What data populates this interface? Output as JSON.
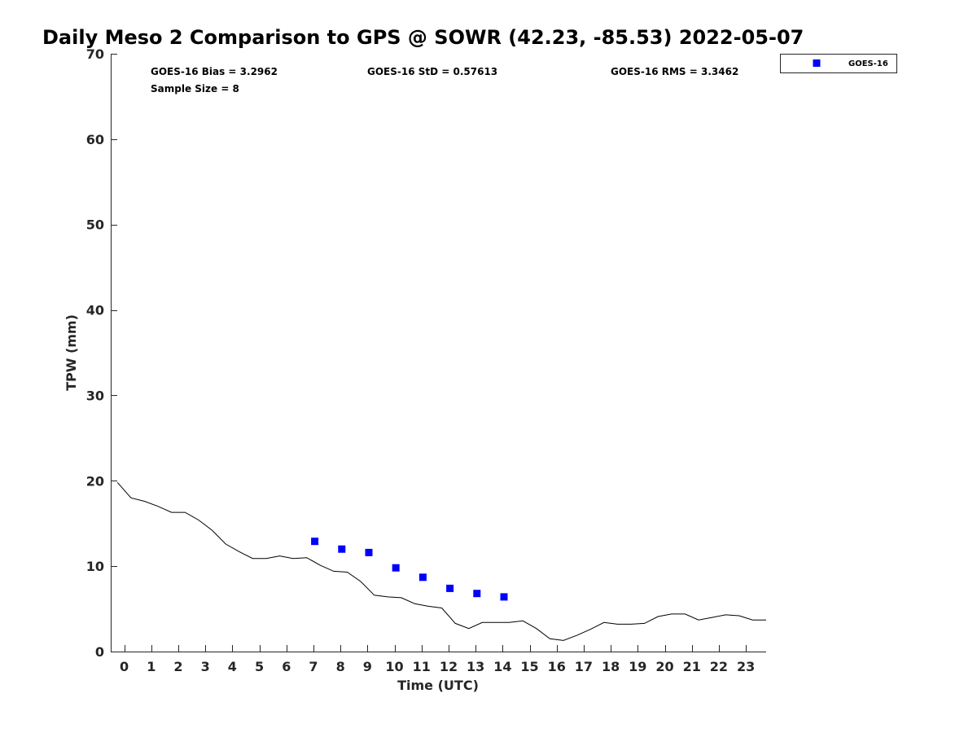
{
  "chart_data": {
    "type": "scatter",
    "title": "Daily Meso 2 Comparison to GPS @ SOWR (42.23, -85.53) 2022-05-07",
    "xlabel": "Time (UTC)",
    "ylabel": "TPW (mm)",
    "xlim": [
      -0.5,
      23.75
    ],
    "ylim": [
      0,
      70
    ],
    "x_ticks": [
      0,
      1,
      2,
      3,
      4,
      5,
      6,
      7,
      8,
      9,
      10,
      11,
      12,
      13,
      14,
      15,
      16,
      17,
      18,
      19,
      20,
      21,
      22,
      23
    ],
    "x_tick_labels": [
      "0",
      "1",
      "2",
      "3",
      "4",
      "5",
      "6",
      "7",
      "8",
      "9",
      "10",
      "11",
      "12",
      "13",
      "14",
      "15",
      "16",
      "17",
      "18",
      "19",
      "20",
      "21",
      "22",
      "23"
    ],
    "y_ticks": [
      0,
      10,
      20,
      30,
      40,
      50,
      60,
      70
    ],
    "y_tick_labels": [
      "0",
      "10",
      "20",
      "30",
      "40",
      "50",
      "60",
      "70"
    ],
    "grid": false,
    "legend": {
      "position": "top-right",
      "entries": [
        "GOES-16"
      ]
    },
    "stats": {
      "bias": "GOES-16 Bias = 3.2962",
      "std": "GOES-16 StD = 0.57613",
      "rms": "GOES-16 RMS = 3.3462",
      "sample_size": "Sample Size = 8"
    },
    "series": [
      {
        "name": "GOES-16",
        "marker": "square",
        "color": "#0000ff",
        "x": [
          7.05,
          8.05,
          9.05,
          10.05,
          11.05,
          12.05,
          13.05,
          14.05
        ],
        "y": [
          12.9,
          12.0,
          11.6,
          9.8,
          8.7,
          7.4,
          6.8,
          6.4
        ]
      },
      {
        "color": "#000000",
        "line": true,
        "x": [
          -0.25,
          0.25,
          0.75,
          1.25,
          1.75,
          2.25,
          2.75,
          3.25,
          3.75,
          4.25,
          4.75,
          5.25,
          5.75,
          6.25,
          6.75,
          7.25,
          7.75,
          8.25,
          8.75,
          9.25,
          9.75,
          10.25,
          10.75,
          11.25,
          11.75,
          12.25,
          12.75,
          13.25,
          13.75,
          14.25,
          14.75,
          15.25,
          15.75,
          16.25,
          16.75,
          17.25,
          17.75,
          18.25,
          18.75,
          19.25,
          19.75,
          20.25,
          20.75,
          21.25,
          21.75,
          22.25,
          22.75,
          23.25,
          23.75
        ],
        "y": [
          19.8,
          18.0,
          17.6,
          17.0,
          16.3,
          16.3,
          15.4,
          14.2,
          12.6,
          11.7,
          10.9,
          10.9,
          11.2,
          10.9,
          11.0,
          10.1,
          9.4,
          9.3,
          8.2,
          6.6,
          6.4,
          6.3,
          5.6,
          5.3,
          5.1,
          3.3,
          2.7,
          3.4,
          3.4,
          3.4,
          3.6,
          2.7,
          1.5,
          1.3,
          1.9,
          2.6,
          3.4,
          3.2,
          3.2,
          3.3,
          4.1,
          4.4,
          4.4,
          3.7,
          4.0,
          4.3,
          4.2,
          3.7,
          3.7
        ]
      }
    ]
  }
}
